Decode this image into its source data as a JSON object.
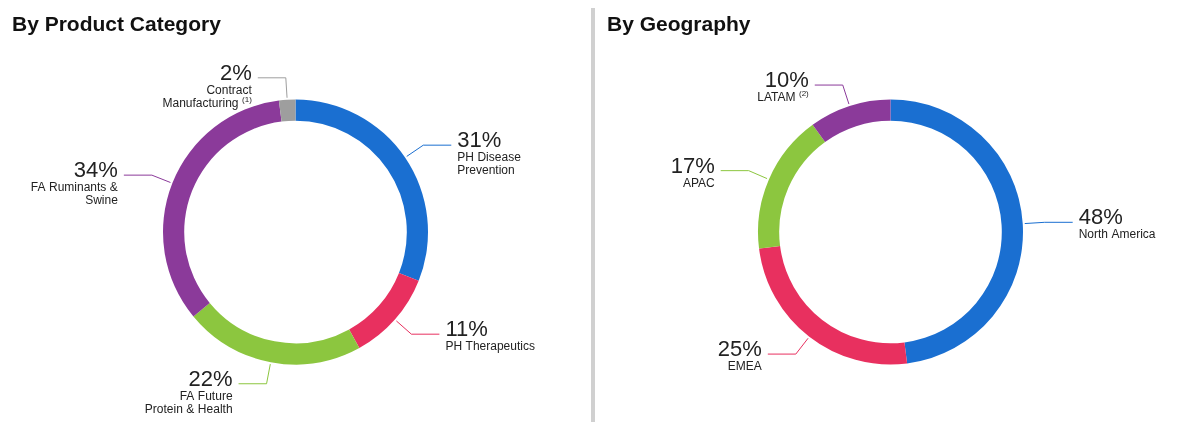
{
  "chart_data": [
    {
      "type": "donut",
      "title": "By Product Category",
      "categories": [
        "PH Disease Prevention",
        "PH Therapeutics",
        "FA Future Protein & Health",
        "FA Ruminants & Swine",
        "Contract Manufacturing $^{(1)}$"
      ],
      "values": [
        31,
        11,
        22,
        34,
        2
      ],
      "value_labels": [
        "31%",
        "11%",
        "22%",
        "34%",
        "2%"
      ],
      "colors": [
        "#1a6fd1",
        "#e8305f",
        "#8cc63f",
        "#8b3a9a",
        "#9e9e9e"
      ]
    },
    {
      "type": "donut",
      "title": "By Geography",
      "categories": [
        "North America",
        "EMEA",
        "APAC",
        "LATAM $^{(2)}$"
      ],
      "values": [
        48,
        25,
        17,
        10
      ],
      "value_labels": [
        "48%",
        "25%",
        "17%",
        "10%"
      ],
      "colors": [
        "#1a6fd1",
        "#e8305f",
        "#8cc63f",
        "#8b3a9a"
      ]
    }
  ]
}
